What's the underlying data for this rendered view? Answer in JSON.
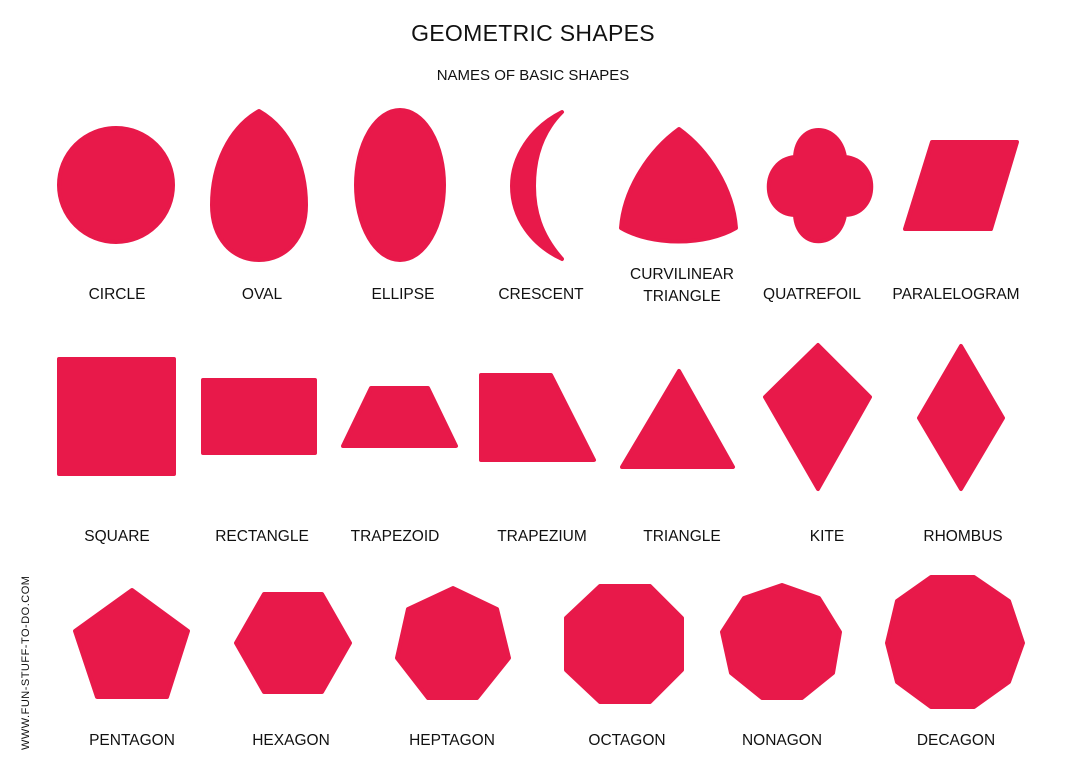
{
  "header": {
    "title": "GEOMETRIC SHAPES",
    "subtitle": "NAMES OF BASIC SHAPES"
  },
  "shape_color": "#e8194a",
  "shapes": {
    "circle": "CIRCLE",
    "oval": "OVAL",
    "ellipse": "ELLIPSE",
    "crescent": "CRESCENT",
    "curvilinear_triangle_1": "CURVILINEAR",
    "curvilinear_triangle_2": "TRIANGLE",
    "quatrefoil": "QUATREFOIL",
    "parallelogram": "PARALELOGRAM",
    "square": "SQUARE",
    "rectangle": "RECTANGLE",
    "trapezoid": "TRAPEZOID",
    "trapezium": "TRAPEZIUM",
    "triangle": "TRIANGLE",
    "kite": "KITE",
    "rhombus": "RHOMBUS",
    "pentagon": "PENTAGON",
    "hexagon": "HEXAGON",
    "heptagon": "HEPTAGON",
    "octagon": "OCTAGON",
    "nonagon": "NONAGON",
    "decagon": "DECAGON"
  },
  "footer": {
    "website": "WWW.FUN-STUFF-TO-DO.COM"
  }
}
